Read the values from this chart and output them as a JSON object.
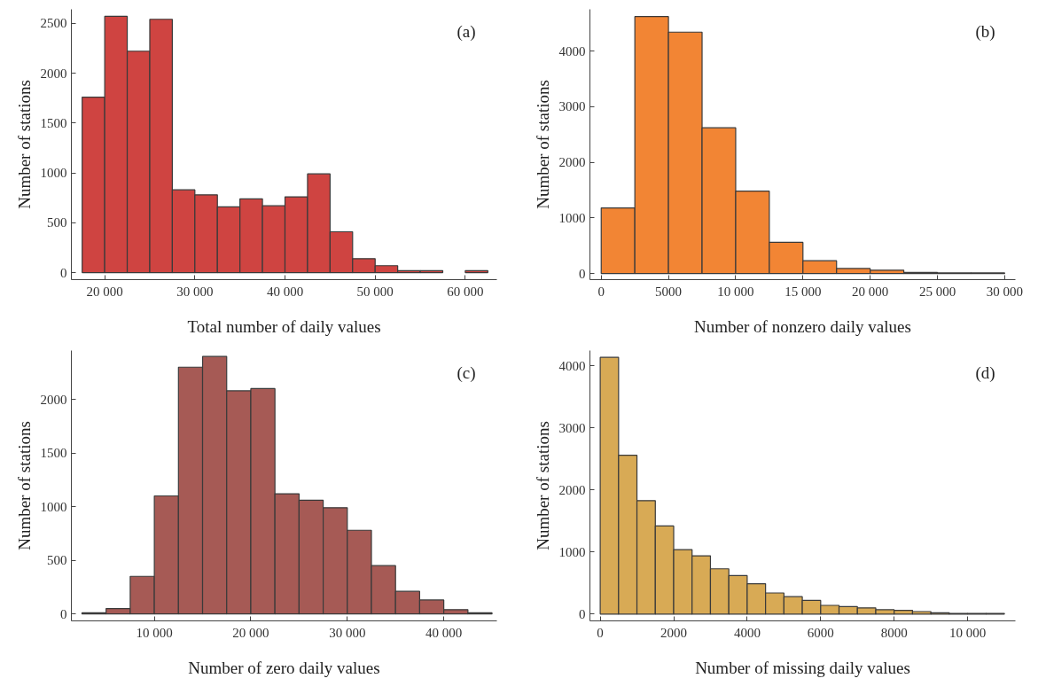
{
  "chart_data": [
    {
      "type": "histogram",
      "xlabel": "Total number of daily values",
      "ylabel": "Number of stations",
      "annotations": [
        "(a)"
      ],
      "color": "#cf4441",
      "bins": [
        17500,
        20000,
        22500,
        25000,
        27500,
        30000,
        32500,
        35000,
        37500,
        40000,
        42500,
        45000,
        47500,
        50000,
        52500,
        55000,
        57500,
        60000,
        62500
      ],
      "values": [
        1760,
        2570,
        2220,
        2540,
        830,
        780,
        660,
        740,
        670,
        760,
        990,
        410,
        140,
        70,
        20,
        20,
        0,
        20
      ],
      "xlim": [
        16300,
        63500
      ],
      "ylim": [
        -70,
        2640
      ],
      "xticks": [
        {
          "value": 20000,
          "label": "20 000"
        },
        {
          "value": 30000,
          "label": "30 000"
        },
        {
          "value": 40000,
          "label": "40 000"
        },
        {
          "value": 50000,
          "label": "50 000"
        },
        {
          "value": 60000,
          "label": "60 000"
        }
      ],
      "yticks": [
        0,
        500,
        1000,
        1500,
        2000,
        2500
      ],
      "grid": false
    },
    {
      "type": "histogram",
      "xlabel": "Number of nonzero daily values",
      "ylabel": "Number of stations",
      "annotations": [
        "(b)"
      ],
      "color": "#f28534",
      "bins": [
        0,
        2500,
        5000,
        7500,
        10000,
        12500,
        15000,
        17500,
        20000,
        22500,
        25000,
        27500,
        30000
      ],
      "values": [
        1180,
        4620,
        4340,
        2620,
        1480,
        560,
        230,
        90,
        60,
        20,
        10,
        10
      ],
      "xlim": [
        -840,
        30800
      ],
      "ylim": [
        -110,
        4750
      ],
      "xticks": [
        0,
        5000,
        {
          "value": 10000,
          "label": "10 000"
        },
        {
          "value": 15000,
          "label": "15 000"
        },
        {
          "value": 20000,
          "label": "20 000"
        },
        {
          "value": 25000,
          "label": "25 000"
        },
        {
          "value": 30000,
          "label": "30 000"
        }
      ],
      "yticks": [
        0,
        1000,
        2000,
        3000,
        4000
      ],
      "grid": false
    },
    {
      "type": "histogram",
      "xlabel": "Number of zero daily values",
      "ylabel": "Number of stations",
      "annotations": [
        "(c)"
      ],
      "color": "#a65a55",
      "bins": [
        2500,
        5000,
        7500,
        10000,
        12500,
        15000,
        17500,
        20000,
        22500,
        25000,
        27500,
        30000,
        32500,
        35000,
        37500,
        40000,
        42500,
        45000
      ],
      "values": [
        10,
        50,
        350,
        1100,
        2300,
        2400,
        2080,
        2100,
        1120,
        1060,
        990,
        780,
        450,
        210,
        130,
        40,
        10
      ],
      "xlim": [
        1400,
        45500
      ],
      "ylim": [
        -65,
        2455
      ],
      "xticks": [
        {
          "value": 10000,
          "label": "10 000"
        },
        {
          "value": 20000,
          "label": "20 000"
        },
        {
          "value": 30000,
          "label": "30 000"
        },
        {
          "value": 40000,
          "label": "40 000"
        }
      ],
      "yticks": [
        0,
        500,
        1000,
        1500,
        2000
      ],
      "grid": false
    },
    {
      "type": "histogram",
      "xlabel": "Number of missing daily values",
      "ylabel": "Number of stations",
      "annotations": [
        "(d)"
      ],
      "color": "#d8aa55",
      "bins": [
        0,
        500,
        1000,
        1500,
        2000,
        2500,
        3000,
        3500,
        4000,
        4500,
        5000,
        5500,
        6000,
        6500,
        7000,
        7500,
        8000,
        8500,
        9000,
        9500,
        10000,
        10500,
        11000
      ],
      "values": [
        4140,
        2560,
        1830,
        1420,
        1040,
        940,
        730,
        620,
        490,
        340,
        280,
        220,
        140,
        120,
        100,
        70,
        60,
        40,
        20,
        10,
        10,
        10
      ],
      "xlim": [
        -280,
        11300
      ],
      "ylim": [
        -110,
        4250
      ],
      "xticks": [
        0,
        2000,
        4000,
        6000,
        8000,
        {
          "value": 10000,
          "label": "10 000"
        }
      ],
      "yticks": [
        0,
        1000,
        2000,
        3000,
        4000
      ],
      "grid": false
    }
  ]
}
